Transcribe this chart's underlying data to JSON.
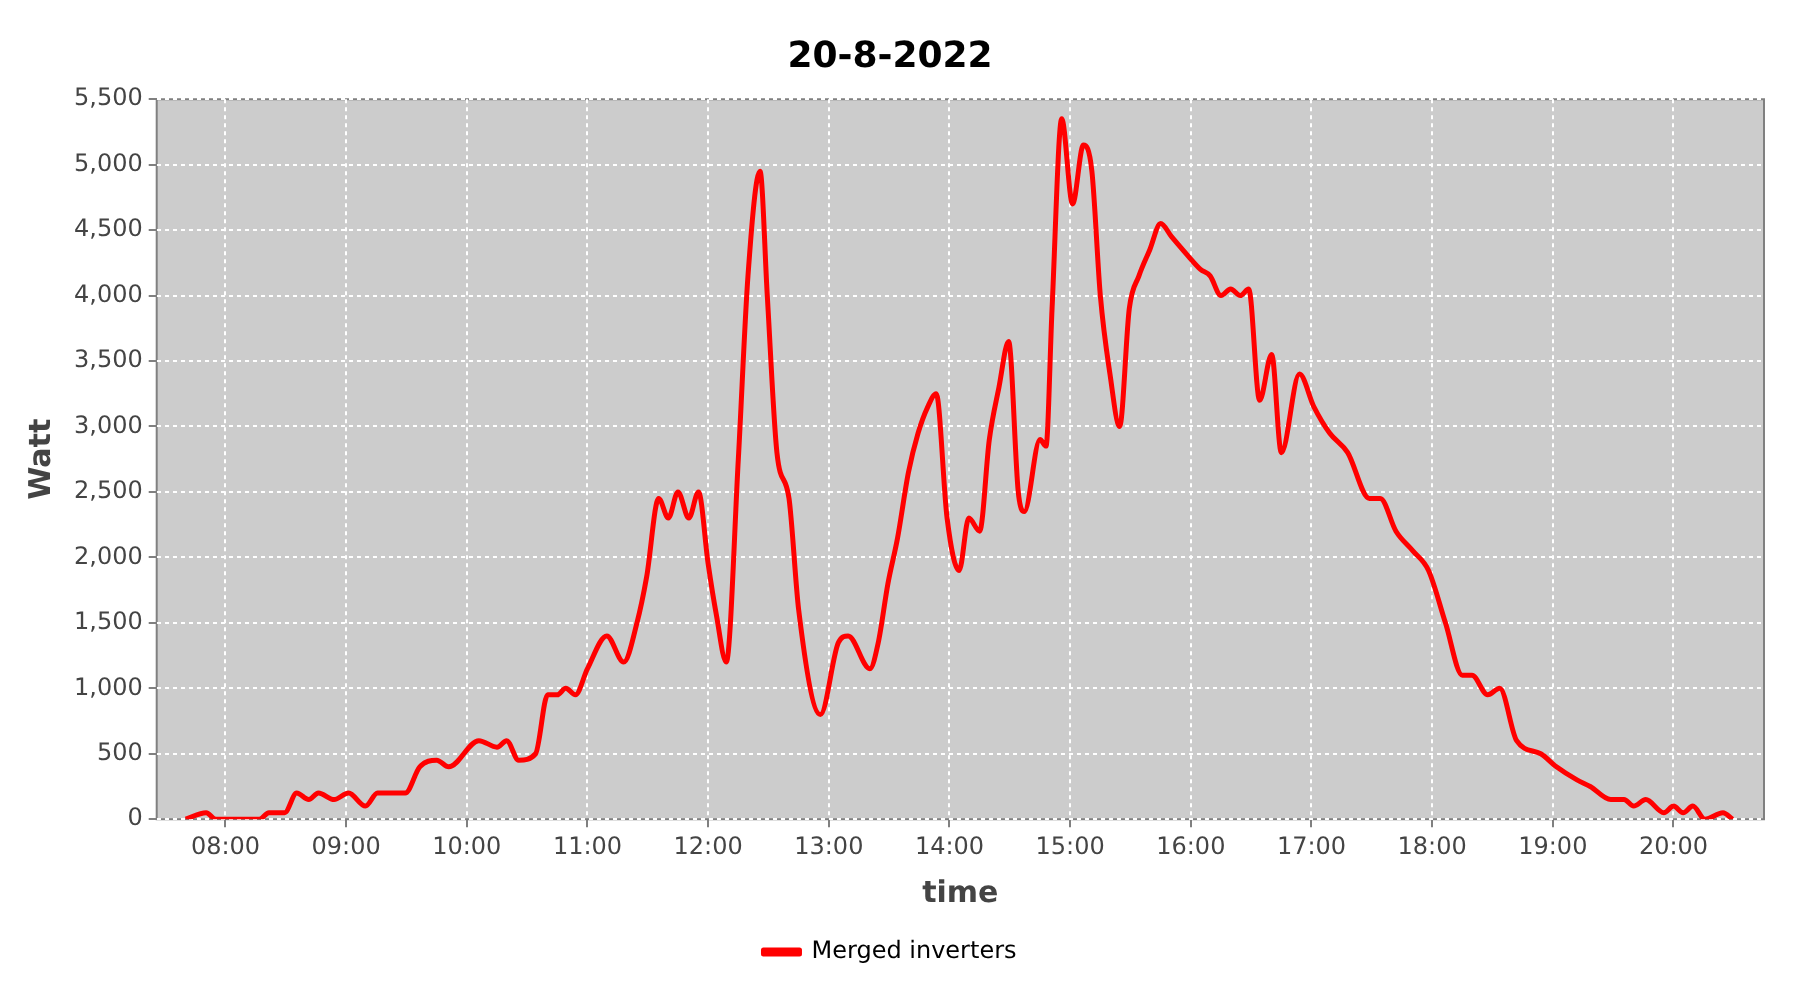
{
  "chart_data": {
    "type": "line",
    "title": "20-8-2022",
    "xlabel": "time",
    "ylabel": "Watt",
    "x": [
      7.67,
      7.84,
      7.92,
      8.28,
      8.36,
      8.49,
      8.59,
      8.69,
      8.77,
      8.9,
      9.02,
      9.16,
      9.26,
      9.49,
      9.61,
      9.75,
      9.85,
      10.1,
      10.25,
      10.33,
      10.43,
      10.57,
      10.67,
      10.75,
      10.82,
      10.9,
      11.0,
      11.16,
      11.3,
      11.41,
      11.49,
      11.59,
      11.67,
      11.75,
      11.84,
      11.92,
      12.0,
      12.07,
      12.15,
      12.25,
      12.33,
      12.43,
      12.49,
      12.57,
      12.67,
      12.75,
      12.93,
      13.08,
      13.16,
      13.34,
      13.41,
      13.49,
      13.57,
      13.66,
      13.74,
      13.82,
      13.89,
      13.98,
      14.08,
      14.16,
      14.25,
      14.33,
      14.41,
      14.49,
      14.57,
      14.62,
      14.75,
      14.8,
      14.85,
      14.93,
      15.02,
      15.11,
      15.18,
      15.25,
      15.33,
      15.41,
      15.49,
      15.57,
      15.66,
      15.75,
      15.84,
      15.98,
      16.08,
      16.16,
      16.25,
      16.33,
      16.41,
      16.48,
      16.57,
      16.67,
      16.75,
      16.9,
      17.02,
      17.15,
      17.3,
      17.48,
      17.57,
      17.7,
      17.84,
      17.97,
      18.11,
      18.25,
      18.33,
      18.46,
      18.56,
      18.7,
      18.9,
      19.03,
      19.2,
      19.31,
      19.48,
      19.59,
      19.67,
      19.77,
      19.92,
      20.0,
      20.08,
      20.16,
      20.26,
      20.41,
      20.49
    ],
    "series": [
      {
        "name": "Merged inverters",
        "color": "#ff0000",
        "values": [
          0,
          50,
          0,
          0,
          50,
          50,
          200,
          150,
          200,
          150,
          200,
          100,
          200,
          200,
          400,
          450,
          400,
          600,
          550,
          600,
          450,
          500,
          950,
          950,
          1000,
          950,
          1150,
          1400,
          1200,
          1500,
          1850,
          2450,
          2300,
          2500,
          2300,
          2500,
          1950,
          1550,
          1200,
          2750,
          4150,
          4950,
          4000,
          2800,
          2450,
          1600,
          800,
          1350,
          1400,
          1150,
          1350,
          1800,
          2150,
          2650,
          2950,
          3150,
          3250,
          2300,
          1900,
          2300,
          2200,
          2900,
          3300,
          3650,
          2500,
          2350,
          2900,
          2850,
          3900,
          5350,
          4700,
          5150,
          4950,
          4000,
          3400,
          3000,
          3900,
          4150,
          4350,
          4550,
          4450,
          4300,
          4200,
          4150,
          4000,
          4050,
          4000,
          4050,
          3200,
          3550,
          2800,
          3400,
          3150,
          2950,
          2800,
          2450,
          2450,
          2200,
          2050,
          1900,
          1500,
          1100,
          1100,
          950,
          1000,
          600,
          500,
          400,
          300,
          250,
          150,
          150,
          100,
          150,
          50,
          100,
          50,
          100,
          0,
          50,
          0
        ]
      }
    ],
    "xlim": [
      7.43,
      20.75
    ],
    "ylim": [
      0,
      5500
    ],
    "xticks": [
      {
        "value": 8,
        "label": "08:00"
      },
      {
        "value": 9,
        "label": "09:00"
      },
      {
        "value": 10,
        "label": "10:00"
      },
      {
        "value": 11,
        "label": "11:00"
      },
      {
        "value": 12,
        "label": "12:00"
      },
      {
        "value": 13,
        "label": "13:00"
      },
      {
        "value": 14,
        "label": "14:00"
      },
      {
        "value": 15,
        "label": "15:00"
      },
      {
        "value": 16,
        "label": "16:00"
      },
      {
        "value": 17,
        "label": "17:00"
      },
      {
        "value": 18,
        "label": "18:00"
      },
      {
        "value": 19,
        "label": "19:00"
      },
      {
        "value": 20,
        "label": "20:00"
      }
    ],
    "yticks": [
      0,
      {
        "value": 500,
        "label": "500"
      },
      {
        "value": 1000,
        "label": "1,000"
      },
      {
        "value": 1500,
        "label": "1,500"
      },
      {
        "value": 2000,
        "label": "2,000"
      },
      {
        "value": 2500,
        "label": "2,500"
      },
      {
        "value": 3000,
        "label": "3,000"
      },
      {
        "value": 3500,
        "label": "3,500"
      },
      {
        "value": 4000,
        "label": "4,000"
      },
      {
        "value": 4500,
        "label": "4,500"
      },
      {
        "value": 5000,
        "label": "5,000"
      },
      {
        "value": 5500,
        "label": "5,500"
      }
    ],
    "grid": true,
    "legend": "bottom",
    "marker": "none",
    "line_style": "solid"
  }
}
